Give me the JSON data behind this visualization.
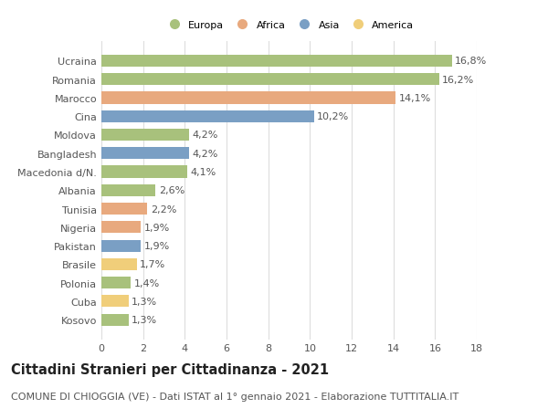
{
  "countries": [
    "Kosovo",
    "Cuba",
    "Polonia",
    "Brasile",
    "Pakistan",
    "Nigeria",
    "Tunisia",
    "Albania",
    "Macedonia d/N.",
    "Bangladesh",
    "Moldova",
    "Cina",
    "Marocco",
    "Romania",
    "Ucraina"
  ],
  "values": [
    1.3,
    1.3,
    1.4,
    1.7,
    1.9,
    1.9,
    2.2,
    2.6,
    4.1,
    4.2,
    4.2,
    10.2,
    14.1,
    16.2,
    16.8
  ],
  "labels": [
    "1,3%",
    "1,3%",
    "1,4%",
    "1,7%",
    "1,9%",
    "1,9%",
    "2,2%",
    "2,6%",
    "4,1%",
    "4,2%",
    "4,2%",
    "10,2%",
    "14,1%",
    "16,2%",
    "16,8%"
  ],
  "continents": [
    "Europa",
    "America",
    "Europa",
    "America",
    "Asia",
    "Africa",
    "Africa",
    "Europa",
    "Europa",
    "Asia",
    "Europa",
    "Asia",
    "Africa",
    "Europa",
    "Europa"
  ],
  "continent_colors": {
    "Europa": "#a8c17c",
    "Africa": "#e8a97e",
    "Asia": "#7a9fc4",
    "America": "#f0ce7a"
  },
  "legend_order": [
    "Europa",
    "Africa",
    "Asia",
    "America"
  ],
  "xlim": [
    0,
    18
  ],
  "xticks": [
    0,
    2,
    4,
    6,
    8,
    10,
    12,
    14,
    16,
    18
  ],
  "title": "Cittadini Stranieri per Cittadinanza - 2021",
  "subtitle": "COMUNE DI CHIOGGIA (VE) - Dati ISTAT al 1° gennaio 2021 - Elaborazione TUTTITALIA.IT",
  "title_fontsize": 10.5,
  "subtitle_fontsize": 8,
  "label_fontsize": 8,
  "tick_fontsize": 8,
  "background_color": "#ffffff",
  "grid_color": "#dddddd",
  "bar_height": 0.65
}
